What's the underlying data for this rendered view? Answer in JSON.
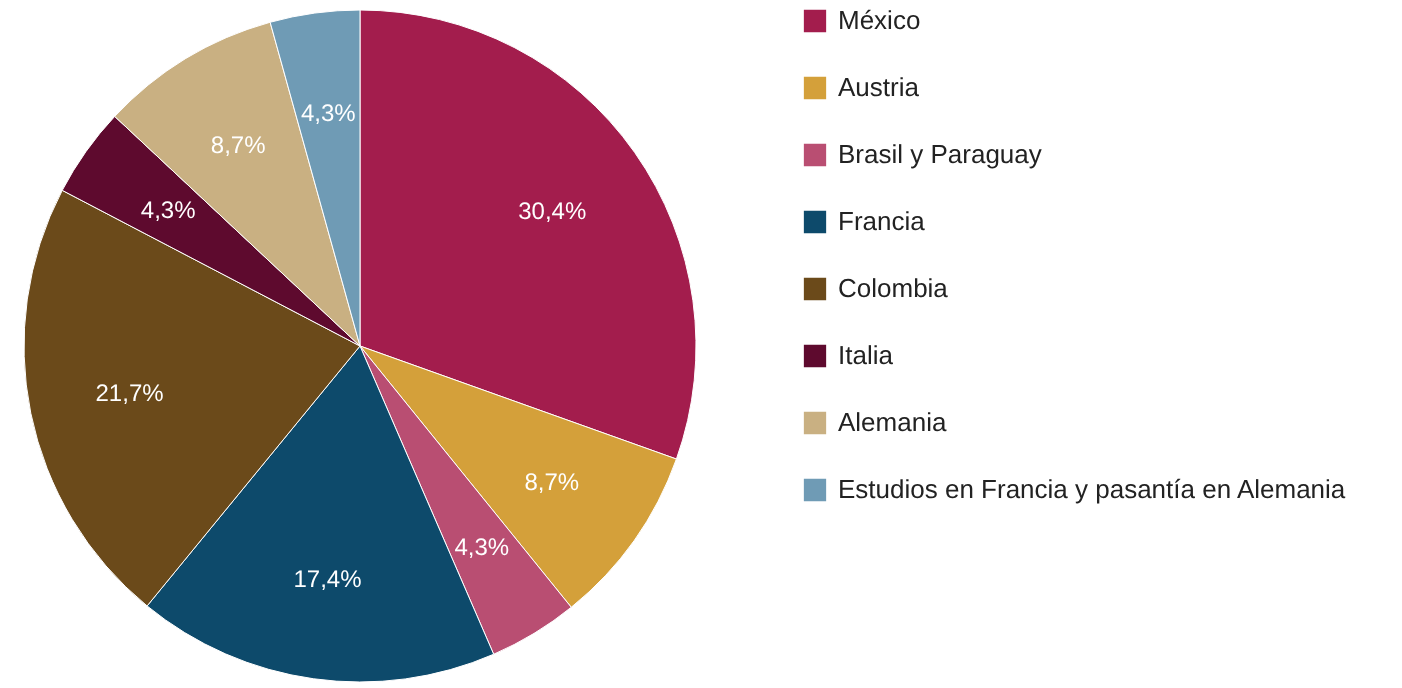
{
  "chart_data": {
    "type": "pie",
    "categories": [
      "México",
      "Austria",
      "Brasil y Paraguay",
      "Francia",
      "Colombia",
      "Italia",
      "Alemania",
      "Estudios en Francia y pasantía en Alemania"
    ],
    "values": [
      30.4,
      8.7,
      4.3,
      17.4,
      21.7,
      4.3,
      8.7,
      4.3
    ],
    "colors": [
      "#a31d4d",
      "#d4a03a",
      "#b94e72",
      "#0d4a6b",
      "#6b4a1a",
      "#5e0a2e",
      "#c9b082",
      "#6f9bb5"
    ],
    "value_labels": [
      "30,4%",
      "8,7%",
      "4,3%",
      "17,4%",
      "21,7%",
      "4,3%",
      "8,7%",
      "4,3%"
    ],
    "legend": "right"
  }
}
